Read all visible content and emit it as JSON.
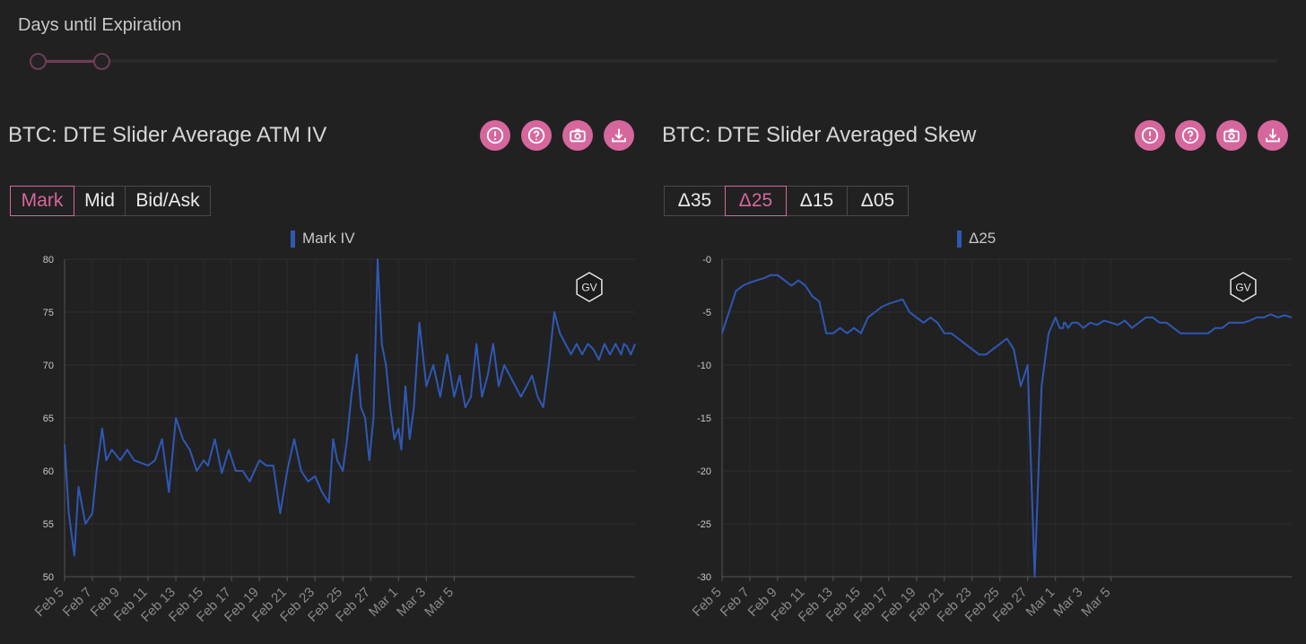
{
  "slider": {
    "title": "Days until Expiration"
  },
  "colors": {
    "accent": "#d6679d",
    "series": "#2f58b5",
    "background": "#212121"
  },
  "left": {
    "title": "BTC: DTE Slider Average ATM IV",
    "buttons": [
      {
        "icon": "alert-icon"
      },
      {
        "icon": "help-icon"
      },
      {
        "icon": "camera-icon"
      },
      {
        "icon": "download-icon"
      }
    ],
    "toggles": [
      "Mark",
      "Mid",
      "Bid/Ask"
    ],
    "active_toggle": "Mark",
    "watermark": "GV"
  },
  "right": {
    "title": "BTC: DTE Slider Averaged Skew",
    "buttons": [
      {
        "icon": "alert-icon"
      },
      {
        "icon": "help-icon"
      },
      {
        "icon": "camera-icon"
      },
      {
        "icon": "download-icon"
      }
    ],
    "toggles": [
      "Δ35",
      "Δ25",
      "Δ15",
      "Δ05"
    ],
    "active_toggle": "Δ25",
    "watermark": "GV"
  },
  "chart_data": [
    {
      "type": "line",
      "legend": "Mark IV",
      "ylim": [
        50,
        80
      ],
      "yticks": [
        "80",
        "75",
        "70",
        "65",
        "60",
        "55",
        "50"
      ],
      "xticks": [
        "Feb 5",
        "Feb 7",
        "Feb 9",
        "Feb 11",
        "Feb 13",
        "Feb 15",
        "Feb 17",
        "Feb 19",
        "Feb 21",
        "Feb 23",
        "Feb 25",
        "Feb 27",
        "Mar 1",
        "Mar 3",
        "Mar 5"
      ],
      "x": [
        0,
        0.3,
        0.7,
        1.0,
        1.5,
        2.0,
        2.3,
        2.7,
        3.0,
        3.4,
        4.0,
        4.5,
        5.0,
        6.0,
        6.5,
        7.0,
        7.5,
        8.0,
        8.5,
        9.0,
        9.5,
        10.0,
        10.3,
        10.8,
        11.3,
        11.8,
        12.3,
        12.8,
        13.3,
        14.0,
        14.5,
        15.0,
        15.5,
        16.0,
        16.5,
        17.0,
        17.5,
        18.0,
        18.5,
        19.0,
        19.3,
        19.6,
        20.0,
        20.3,
        20.6,
        21.0,
        21.3,
        21.6,
        21.9,
        22.2,
        22.5,
        22.8,
        23.1,
        23.4,
        23.7,
        24.0,
        24.2,
        24.5,
        24.8,
        25.1,
        25.5,
        26.0,
        26.5,
        27.0,
        27.5,
        28.0,
        28.4,
        28.8,
        29.2,
        29.6,
        30.0,
        30.4,
        30.8,
        31.2,
        31.6,
        32.0,
        32.4,
        32.8,
        33.2,
        33.6,
        34.0,
        34.4,
        34.8,
        35.2,
        35.6,
        36.0,
        36.4,
        36.8,
        37.2,
        37.6,
        38.0,
        38.4,
        38.8,
        39.2,
        39.6,
        40.0,
        40.2,
        40.4,
        40.7,
        41.0
      ],
      "y": [
        62.5,
        56,
        52,
        58.5,
        55,
        56,
        60,
        64,
        61,
        62,
        61,
        62,
        61,
        60.5,
        61,
        63,
        58,
        65,
        63,
        62,
        60,
        61,
        60.5,
        63,
        59.8,
        62,
        60,
        60,
        59,
        61,
        60.5,
        60.5,
        56,
        60,
        63,
        60,
        59,
        59.5,
        58,
        57,
        63,
        61,
        60,
        63,
        67,
        71,
        66,
        65,
        61,
        65,
        80,
        72,
        70,
        66,
        63,
        64,
        62,
        68,
        63,
        66,
        74,
        68,
        70,
        67,
        71,
        67,
        69,
        66,
        67,
        72,
        67,
        69,
        72,
        68,
        70,
        69,
        68,
        67,
        68,
        69,
        67,
        66,
        70,
        75,
        73,
        72,
        71,
        72,
        71,
        72,
        71.5,
        70.5,
        72,
        71,
        72,
        71,
        72,
        71.8,
        71,
        72
      ],
      "xmax": 41
    },
    {
      "type": "line",
      "legend": "Δ25",
      "ylim": [
        -30,
        0
      ],
      "yticks": [
        "-0",
        "-5",
        "-10",
        "-15",
        "-20",
        "-25",
        "-30"
      ],
      "xticks": [
        "Feb 5",
        "Feb 7",
        "Feb 9",
        "Feb 11",
        "Feb 13",
        "Feb 15",
        "Feb 17",
        "Feb 19",
        "Feb 21",
        "Feb 23",
        "Feb 25",
        "Feb 27",
        "Mar 1",
        "Mar 3",
        "Mar 5"
      ],
      "x": [
        0,
        0.5,
        1.0,
        1.5,
        2.0,
        2.5,
        3.0,
        3.5,
        4.0,
        4.5,
        5.0,
        5.5,
        6.0,
        6.5,
        7.0,
        7.5,
        8.0,
        8.5,
        9.0,
        9.5,
        10.0,
        10.5,
        11.0,
        11.5,
        12.0,
        12.5,
        13.0,
        13.5,
        14.0,
        14.5,
        15.0,
        15.5,
        16.0,
        16.5,
        17.0,
        17.5,
        18.0,
        18.5,
        19.0,
        19.5,
        20.0,
        20.5,
        21.0,
        21.5,
        22.0,
        22.5,
        23.0,
        23.5,
        24.0,
        24.3,
        24.55,
        24.6,
        24.7,
        24.9,
        25.2,
        25.6,
        26.0,
        26.5,
        27.0,
        27.5,
        28.0,
        28.5,
        29.0,
        29.5,
        30.0,
        30.5,
        31.0,
        31.5,
        32.0,
        32.5,
        33.0,
        33.5,
        34.0,
        34.5,
        35.0,
        35.5,
        36.0,
        36.5,
        37.0,
        37.5,
        38.0,
        38.5,
        39.0,
        39.5,
        40.0,
        40.5,
        41.0
      ],
      "y": [
        -7,
        -5,
        -3,
        -2.5,
        -2.2,
        -2,
        -1.8,
        -1.5,
        -1.5,
        -2,
        -2.5,
        -2,
        -2.5,
        -3.5,
        -4,
        -7,
        -7,
        -6.5,
        -7,
        -6.5,
        -7,
        -5.5,
        -5,
        -4.5,
        -4.2,
        -4,
        -3.8,
        -5,
        -5.5,
        -6,
        -5.5,
        -6,
        -7,
        -7,
        -7.5,
        -8,
        -8.5,
        -9,
        -9,
        -8.5,
        -8,
        -7.5,
        -8.5,
        -12,
        -10,
        -30,
        -12,
        -7,
        -5.5,
        -6.5,
        -6.5,
        -6,
        -6,
        -6.5,
        -6,
        -6,
        -6.5,
        -6,
        -6.2,
        -5.8,
        -6,
        -6.2,
        -5.8,
        -6.5,
        -6,
        -5.5,
        -5.5,
        -6,
        -6,
        -6.5,
        -7,
        -7,
        -7,
        -7,
        -7,
        -6.5,
        -6.5,
        -6,
        -6,
        -6,
        -5.8,
        -5.5,
        -5.5,
        -5.2,
        -5.5,
        -5.3,
        -5.5
      ],
      "xmax": 41
    }
  ]
}
